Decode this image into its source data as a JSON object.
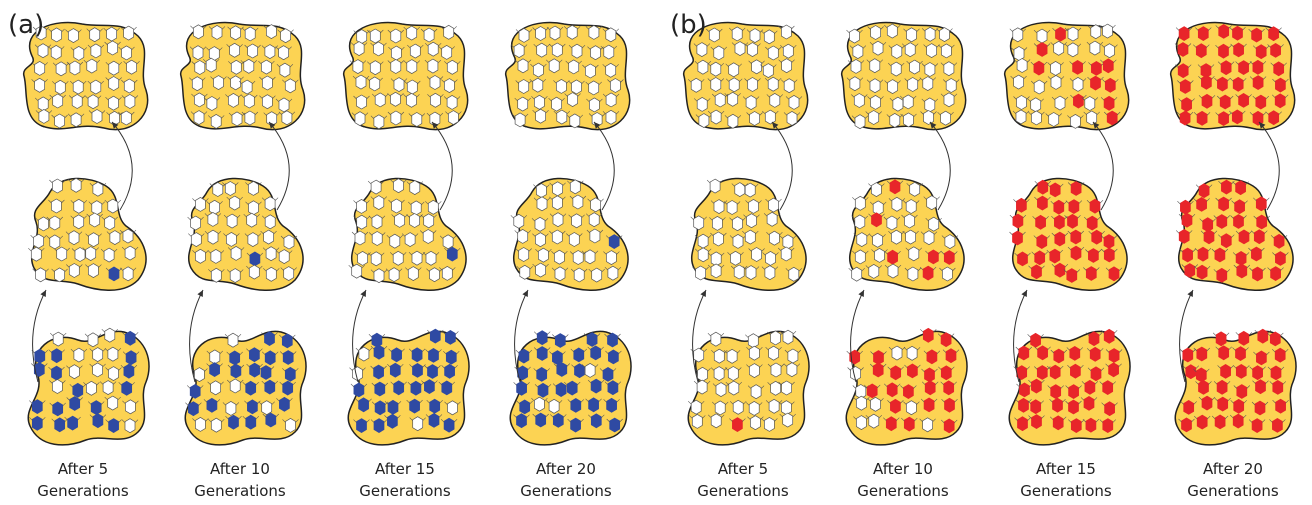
{
  "panels": [
    {
      "label": "(a)",
      "colored_color": "#2f4aa3",
      "columns": [
        {
          "line1": "After 5",
          "line2": "Generations",
          "colored_fraction": {
            "bottom": 0.55,
            "middle": 0.04,
            "top": 0.0
          }
        },
        {
          "line1": "After 10",
          "line2": "Generations",
          "colored_fraction": {
            "bottom": 0.7,
            "middle": 0.04,
            "top": 0.0
          }
        },
        {
          "line1": "After 15",
          "line2": "Generations",
          "colored_fraction": {
            "bottom": 0.88,
            "middle": 0.04,
            "top": 0.0
          }
        },
        {
          "line1": "After 20",
          "line2": "Generations",
          "colored_fraction": {
            "bottom": 0.92,
            "middle": 0.04,
            "top": 0.0
          }
        }
      ]
    },
    {
      "label": "(b)",
      "colored_color": "#e8252a",
      "columns": [
        {
          "line1": "After 5",
          "line2": "Generations",
          "colored_fraction": {
            "bottom": 0.04,
            "middle": 0.0,
            "top": 0.0
          }
        },
        {
          "line1": "After 10",
          "line2": "Generations",
          "colored_fraction": {
            "bottom": 0.7,
            "middle": 0.2,
            "top": 0.0
          }
        },
        {
          "line1": "After 15",
          "line2": "Generations",
          "colored_fraction": {
            "bottom": 1.0,
            "middle": 1.0,
            "top": 0.3
          }
        },
        {
          "line1": "After 20",
          "line2": "Generations",
          "colored_fraction": {
            "bottom": 1.0,
            "middle": 1.0,
            "top": 1.0
          }
        }
      ]
    }
  ],
  "colors": {
    "island_fill": "#fcd353",
    "island_stroke": "#222222",
    "white_individual": "#ffffff",
    "outline": "#555555",
    "arrow": "#333333"
  }
}
